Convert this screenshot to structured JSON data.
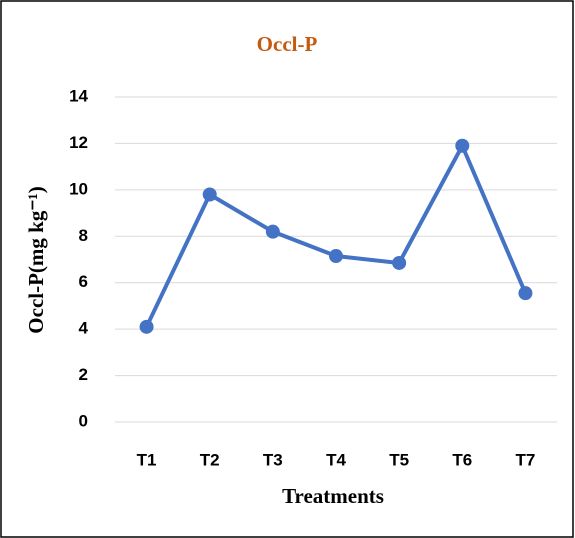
{
  "chart_data": {
    "type": "line",
    "title": "Occl-P",
    "x_label": "Treatments",
    "y_label": "Occl-P(mg kg⁻¹)",
    "categories": [
      "T1",
      "T2",
      "T3",
      "T4",
      "T5",
      "T6",
      "T7"
    ],
    "series": [
      {
        "name": "Occl-P",
        "color": "#4472c4",
        "values": [
          4.1,
          9.8,
          8.2,
          7.15,
          6.85,
          11.9,
          5.55
        ]
      }
    ],
    "ylim": [
      0,
      14
    ],
    "yticks": [
      0,
      2,
      4,
      6,
      8,
      10,
      12,
      14
    ],
    "grid": true
  }
}
